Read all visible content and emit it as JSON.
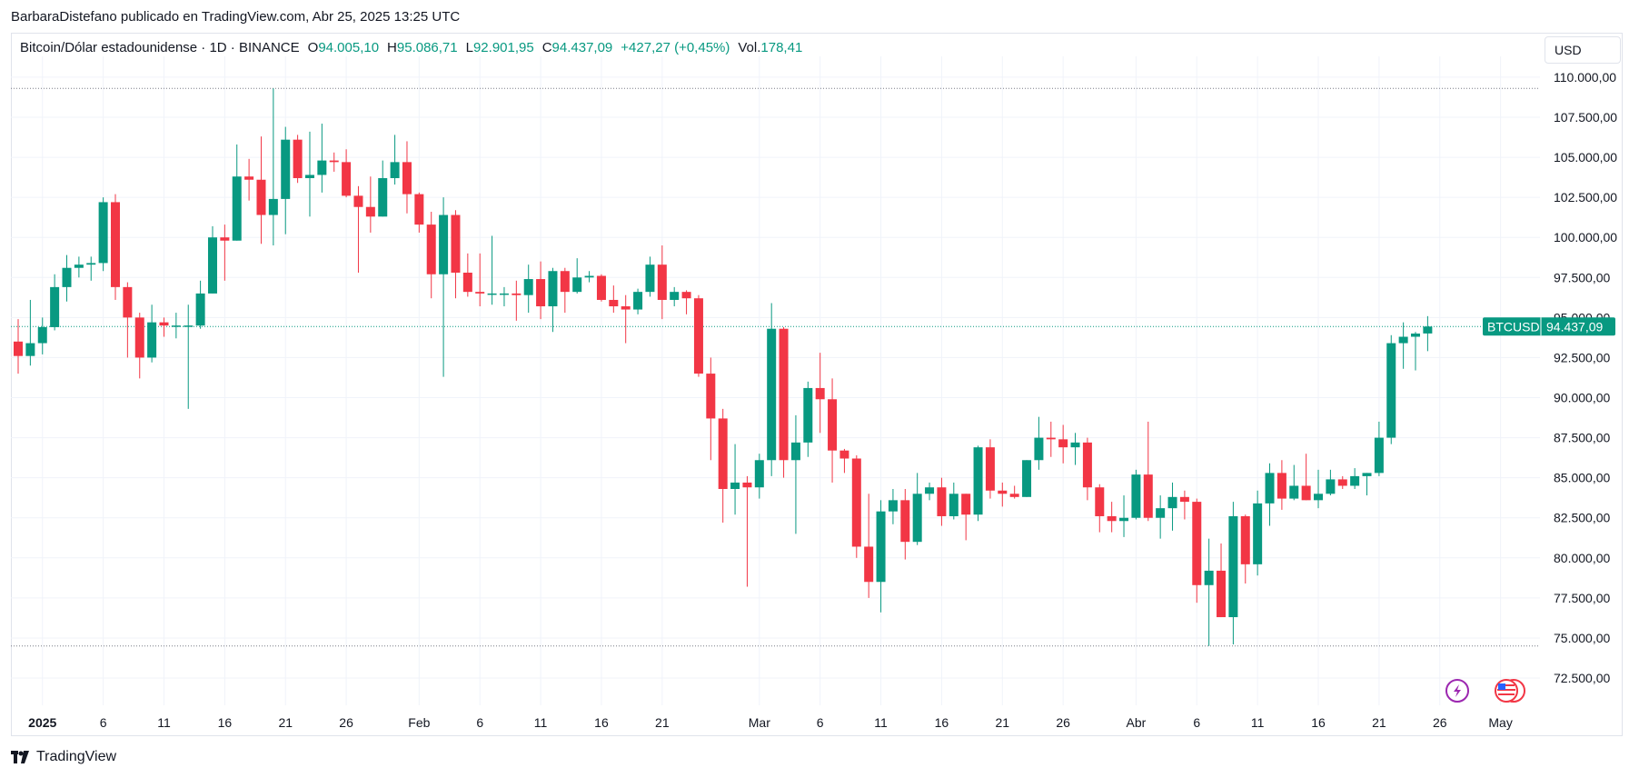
{
  "header": {
    "published_by": "BarbaraDistefano publicado en TradingView.com, Abr 25, 2025 13:25 UTC"
  },
  "legend": {
    "symbol": "Bitcoin/Dólar estadounidense · 1D · BINANCE",
    "open_label": "O",
    "open": "94.005,10",
    "high_label": "H",
    "high": "95.086,71",
    "low_label": "L",
    "low": "92.901,95",
    "close_label": "C",
    "close": "94.437,09",
    "change": "+427,27 (+0,45%)",
    "volume_label": "Vol.",
    "volume": "178,41"
  },
  "currency_button": "USD",
  "price_tag": {
    "symbol": "BTCUSD",
    "price": "94.437,09"
  },
  "branding": "TradingView",
  "icons": [
    "lightning-icon",
    "us-flag-icon"
  ],
  "colors": {
    "up": "#089981",
    "down": "#f23645",
    "grid": "#f0f3fa",
    "axis_text": "#131722"
  },
  "chart_data": {
    "type": "candlestick",
    "y_ticks": [
      72500,
      75000,
      77500,
      80000,
      82500,
      85000,
      87500,
      90000,
      92500,
      95000,
      97500,
      100000,
      102500,
      105000,
      107500,
      110000
    ],
    "y_tick_labels": [
      "72.500,00",
      "75.000,00",
      "77.500,00",
      "80.000,00",
      "82.500,00",
      "85.000,00",
      "87.500,00",
      "90.000,00",
      "92.500,00",
      "95.000,00",
      "97.500,00",
      "100.000,00",
      "102.500,00",
      "105.000,00",
      "107.500,00",
      "110.000,00"
    ],
    "ylim": [
      70800,
      111300
    ],
    "x_range_dates": [
      "2024-12-30",
      "2025-05-02"
    ],
    "x_labels": [
      {
        "date": "2025-01-01",
        "label": "2025",
        "bold": true
      },
      {
        "date": "2025-01-06",
        "label": "6"
      },
      {
        "date": "2025-01-11",
        "label": "11"
      },
      {
        "date": "2025-01-16",
        "label": "16"
      },
      {
        "date": "2025-01-21",
        "label": "21"
      },
      {
        "date": "2025-01-26",
        "label": "26"
      },
      {
        "date": "2025-02-01",
        "label": "Feb"
      },
      {
        "date": "2025-02-06",
        "label": "6"
      },
      {
        "date": "2025-02-11",
        "label": "11"
      },
      {
        "date": "2025-02-16",
        "label": "16"
      },
      {
        "date": "2025-02-21",
        "label": "21"
      },
      {
        "date": "2025-03-01",
        "label": "Mar"
      },
      {
        "date": "2025-03-06",
        "label": "6"
      },
      {
        "date": "2025-03-11",
        "label": "11"
      },
      {
        "date": "2025-03-16",
        "label": "16"
      },
      {
        "date": "2025-03-21",
        "label": "21"
      },
      {
        "date": "2025-03-26",
        "label": "26"
      },
      {
        "date": "2025-04-01",
        "label": "Abr"
      },
      {
        "date": "2025-04-06",
        "label": "6"
      },
      {
        "date": "2025-04-11",
        "label": "11"
      },
      {
        "date": "2025-04-16",
        "label": "16"
      },
      {
        "date": "2025-04-21",
        "label": "21"
      },
      {
        "date": "2025-04-26",
        "label": "26"
      },
      {
        "date": "2025-05-01",
        "label": "May"
      }
    ],
    "high_line": 109300,
    "low_line": 74500,
    "last_price": 94437.09,
    "candles": [
      {
        "date": "2024-12-30",
        "o": 93500,
        "h": 94900,
        "l": 91500,
        "c": 92600
      },
      {
        "date": "2024-12-31",
        "o": 92600,
        "h": 96100,
        "l": 92000,
        "c": 93400
      },
      {
        "date": "2025-01-01",
        "o": 93400,
        "h": 95000,
        "l": 92700,
        "c": 94400
      },
      {
        "date": "2025-01-02",
        "o": 94400,
        "h": 97700,
        "l": 94200,
        "c": 96900
      },
      {
        "date": "2025-01-03",
        "o": 96900,
        "h": 98900,
        "l": 96000,
        "c": 98100
      },
      {
        "date": "2025-01-04",
        "o": 98100,
        "h": 98800,
        "l": 97500,
        "c": 98300
      },
      {
        "date": "2025-01-05",
        "o": 98300,
        "h": 98800,
        "l": 97300,
        "c": 98400
      },
      {
        "date": "2025-01-06",
        "o": 98400,
        "h": 102500,
        "l": 97900,
        "c": 102200
      },
      {
        "date": "2025-01-07",
        "o": 102200,
        "h": 102700,
        "l": 96100,
        "c": 96900
      },
      {
        "date": "2025-01-08",
        "o": 96900,
        "h": 97200,
        "l": 92500,
        "c": 95000
      },
      {
        "date": "2025-01-09",
        "o": 95000,
        "h": 95300,
        "l": 91200,
        "c": 92500
      },
      {
        "date": "2025-01-10",
        "o": 92500,
        "h": 95800,
        "l": 92200,
        "c": 94700
      },
      {
        "date": "2025-01-11",
        "o": 94700,
        "h": 95000,
        "l": 93800,
        "c": 94500
      },
      {
        "date": "2025-01-12",
        "o": 94500,
        "h": 95300,
        "l": 93700,
        "c": 94500
      },
      {
        "date": "2025-01-13",
        "o": 94500,
        "h": 95800,
        "l": 89300,
        "c": 94500
      },
      {
        "date": "2025-01-14",
        "o": 94500,
        "h": 97300,
        "l": 94300,
        "c": 96500
      },
      {
        "date": "2025-01-15",
        "o": 96500,
        "h": 100700,
        "l": 96500,
        "c": 100000
      },
      {
        "date": "2025-01-16",
        "o": 100000,
        "h": 100800,
        "l": 97300,
        "c": 99800
      },
      {
        "date": "2025-01-17",
        "o": 99800,
        "h": 105800,
        "l": 99800,
        "c": 103800
      },
      {
        "date": "2025-01-18",
        "o": 103800,
        "h": 104900,
        "l": 102300,
        "c": 103600
      },
      {
        "date": "2025-01-19",
        "o": 103600,
        "h": 106300,
        "l": 99600,
        "c": 101400
      },
      {
        "date": "2025-01-20",
        "o": 101400,
        "h": 109300,
        "l": 99500,
        "c": 102400
      },
      {
        "date": "2025-01-21",
        "o": 102400,
        "h": 106900,
        "l": 100200,
        "c": 106100
      },
      {
        "date": "2025-01-22",
        "o": 106100,
        "h": 106400,
        "l": 103400,
        "c": 103700
      },
      {
        "date": "2025-01-23",
        "o": 103700,
        "h": 106600,
        "l": 101300,
        "c": 103900
      },
      {
        "date": "2025-01-24",
        "o": 103900,
        "h": 107100,
        "l": 102800,
        "c": 104800
      },
      {
        "date": "2025-01-25",
        "o": 104800,
        "h": 105300,
        "l": 104100,
        "c": 104700
      },
      {
        "date": "2025-01-26",
        "o": 104700,
        "h": 105500,
        "l": 102500,
        "c": 102600
      },
      {
        "date": "2025-01-27",
        "o": 102600,
        "h": 103200,
        "l": 97800,
        "c": 101900
      },
      {
        "date": "2025-01-28",
        "o": 101900,
        "h": 103800,
        "l": 100300,
        "c": 101300
      },
      {
        "date": "2025-01-29",
        "o": 101300,
        "h": 104800,
        "l": 101300,
        "c": 103700
      },
      {
        "date": "2025-01-30",
        "o": 103700,
        "h": 106400,
        "l": 103300,
        "c": 104700
      },
      {
        "date": "2025-01-31",
        "o": 104700,
        "h": 106000,
        "l": 101500,
        "c": 102700
      },
      {
        "date": "2025-02-01",
        "o": 102700,
        "h": 102800,
        "l": 100300,
        "c": 100800
      },
      {
        "date": "2025-02-02",
        "o": 100800,
        "h": 101600,
        "l": 96200,
        "c": 97700
      },
      {
        "date": "2025-02-03",
        "o": 97700,
        "h": 102500,
        "l": 91300,
        "c": 101400
      },
      {
        "date": "2025-02-04",
        "o": 101400,
        "h": 101700,
        "l": 96200,
        "c": 97800
      },
      {
        "date": "2025-02-05",
        "o": 97800,
        "h": 99000,
        "l": 96300,
        "c": 96600
      },
      {
        "date": "2025-02-06",
        "o": 96600,
        "h": 99000,
        "l": 95700,
        "c": 96500
      },
      {
        "date": "2025-02-07",
        "o": 96500,
        "h": 100100,
        "l": 95800,
        "c": 96500
      },
      {
        "date": "2025-02-08",
        "o": 96500,
        "h": 96900,
        "l": 95700,
        "c": 96500
      },
      {
        "date": "2025-02-09",
        "o": 96500,
        "h": 97300,
        "l": 94800,
        "c": 96400
      },
      {
        "date": "2025-02-10",
        "o": 96400,
        "h": 98300,
        "l": 95300,
        "c": 97400
      },
      {
        "date": "2025-02-11",
        "o": 97400,
        "h": 98500,
        "l": 94900,
        "c": 95700
      },
      {
        "date": "2025-02-12",
        "o": 95700,
        "h": 98100,
        "l": 94100,
        "c": 97900
      },
      {
        "date": "2025-02-13",
        "o": 97900,
        "h": 98100,
        "l": 95300,
        "c": 96600
      },
      {
        "date": "2025-02-14",
        "o": 96600,
        "h": 98700,
        "l": 96500,
        "c": 97500
      },
      {
        "date": "2025-02-15",
        "o": 97500,
        "h": 97900,
        "l": 97200,
        "c": 97600
      },
      {
        "date": "2025-02-16",
        "o": 97600,
        "h": 97700,
        "l": 96000,
        "c": 96100
      },
      {
        "date": "2025-02-17",
        "o": 96100,
        "h": 97000,
        "l": 95300,
        "c": 95700
      },
      {
        "date": "2025-02-18",
        "o": 95700,
        "h": 96400,
        "l": 93400,
        "c": 95500
      },
      {
        "date": "2025-02-19",
        "o": 95500,
        "h": 96800,
        "l": 95200,
        "c": 96600
      },
      {
        "date": "2025-02-20",
        "o": 96600,
        "h": 98800,
        "l": 96300,
        "c": 98300
      },
      {
        "date": "2025-02-21",
        "o": 98300,
        "h": 99500,
        "l": 94900,
        "c": 96100
      },
      {
        "date": "2025-02-22",
        "o": 96100,
        "h": 96900,
        "l": 95700,
        "c": 96600
      },
      {
        "date": "2025-02-23",
        "o": 96600,
        "h": 96700,
        "l": 95200,
        "c": 96200
      },
      {
        "date": "2025-02-24",
        "o": 96200,
        "h": 96400,
        "l": 91300,
        "c": 91500
      },
      {
        "date": "2025-02-25",
        "o": 91500,
        "h": 92500,
        "l": 86100,
        "c": 88700
      },
      {
        "date": "2025-02-26",
        "o": 88700,
        "h": 89300,
        "l": 82200,
        "c": 84300
      },
      {
        "date": "2025-02-27",
        "o": 84300,
        "h": 87100,
        "l": 82700,
        "c": 84700
      },
      {
        "date": "2025-02-28",
        "o": 84700,
        "h": 85100,
        "l": 78200,
        "c": 84400
      },
      {
        "date": "2025-03-01",
        "o": 84400,
        "h": 86500,
        "l": 83700,
        "c": 86100
      },
      {
        "date": "2025-03-02",
        "o": 86100,
        "h": 95900,
        "l": 85100,
        "c": 94300
      },
      {
        "date": "2025-03-03",
        "o": 94300,
        "h": 94400,
        "l": 85000,
        "c": 86100
      },
      {
        "date": "2025-03-04",
        "o": 86100,
        "h": 88900,
        "l": 81500,
        "c": 87200
      },
      {
        "date": "2025-03-05",
        "o": 87200,
        "h": 91000,
        "l": 86300,
        "c": 90600
      },
      {
        "date": "2025-03-06",
        "o": 90600,
        "h": 92800,
        "l": 87800,
        "c": 89900
      },
      {
        "date": "2025-03-07",
        "o": 89900,
        "h": 91200,
        "l": 84700,
        "c": 86700
      },
      {
        "date": "2025-03-08",
        "o": 86700,
        "h": 86800,
        "l": 85300,
        "c": 86200
      },
      {
        "date": "2025-03-09",
        "o": 86200,
        "h": 86400,
        "l": 80000,
        "c": 80700
      },
      {
        "date": "2025-03-10",
        "o": 80700,
        "h": 84000,
        "l": 77500,
        "c": 78500
      },
      {
        "date": "2025-03-11",
        "o": 78500,
        "h": 83600,
        "l": 76600,
        "c": 82900
      },
      {
        "date": "2025-03-12",
        "o": 82900,
        "h": 84300,
        "l": 82100,
        "c": 83600
      },
      {
        "date": "2025-03-13",
        "o": 83600,
        "h": 84300,
        "l": 79900,
        "c": 81000
      },
      {
        "date": "2025-03-14",
        "o": 81000,
        "h": 85300,
        "l": 80800,
        "c": 84000
      },
      {
        "date": "2025-03-15",
        "o": 84000,
        "h": 84700,
        "l": 83600,
        "c": 84400
      },
      {
        "date": "2025-03-16",
        "o": 84400,
        "h": 85000,
        "l": 82000,
        "c": 82600
      },
      {
        "date": "2025-03-17",
        "o": 82600,
        "h": 84700,
        "l": 82400,
        "c": 84000
      },
      {
        "date": "2025-03-18",
        "o": 84000,
        "h": 84000,
        "l": 81100,
        "c": 82700
      },
      {
        "date": "2025-03-19",
        "o": 82700,
        "h": 87000,
        "l": 82300,
        "c": 86900
      },
      {
        "date": "2025-03-20",
        "o": 86900,
        "h": 87400,
        "l": 83700,
        "c": 84200
      },
      {
        "date": "2025-03-21",
        "o": 84200,
        "h": 84700,
        "l": 83200,
        "c": 84000
      },
      {
        "date": "2025-03-22",
        "o": 84000,
        "h": 84500,
        "l": 83700,
        "c": 83800
      },
      {
        "date": "2025-03-23",
        "o": 83800,
        "h": 86100,
        "l": 83800,
        "c": 86100
      },
      {
        "date": "2025-03-24",
        "o": 86100,
        "h": 88800,
        "l": 85500,
        "c": 87500
      },
      {
        "date": "2025-03-25",
        "o": 87500,
        "h": 88500,
        "l": 86300,
        "c": 87400
      },
      {
        "date": "2025-03-26",
        "o": 87400,
        "h": 88300,
        "l": 85900,
        "c": 86900
      },
      {
        "date": "2025-03-27",
        "o": 86900,
        "h": 87800,
        "l": 85800,
        "c": 87200
      },
      {
        "date": "2025-03-28",
        "o": 87200,
        "h": 87500,
        "l": 83600,
        "c": 84400
      },
      {
        "date": "2025-03-29",
        "o": 84400,
        "h": 84600,
        "l": 81600,
        "c": 82600
      },
      {
        "date": "2025-03-30",
        "o": 82600,
        "h": 83500,
        "l": 81600,
        "c": 82300
      },
      {
        "date": "2025-03-31",
        "o": 82300,
        "h": 83900,
        "l": 81300,
        "c": 82500
      },
      {
        "date": "2025-04-01",
        "o": 82500,
        "h": 85500,
        "l": 82400,
        "c": 85200
      },
      {
        "date": "2025-04-02",
        "o": 85200,
        "h": 88500,
        "l": 82300,
        "c": 82500
      },
      {
        "date": "2025-04-03",
        "o": 82500,
        "h": 83900,
        "l": 81200,
        "c": 83100
      },
      {
        "date": "2025-04-04",
        "o": 83100,
        "h": 84700,
        "l": 81700,
        "c": 83800
      },
      {
        "date": "2025-04-05",
        "o": 83800,
        "h": 84200,
        "l": 82400,
        "c": 83500
      },
      {
        "date": "2025-04-06",
        "o": 83500,
        "h": 83700,
        "l": 77200,
        "c": 78300
      },
      {
        "date": "2025-04-07",
        "o": 78300,
        "h": 81200,
        "l": 74500,
        "c": 79200
      },
      {
        "date": "2025-04-08",
        "o": 79200,
        "h": 80900,
        "l": 76300,
        "c": 76300
      },
      {
        "date": "2025-04-09",
        "o": 76300,
        "h": 83500,
        "l": 74600,
        "c": 82600
      },
      {
        "date": "2025-04-10",
        "o": 82600,
        "h": 82700,
        "l": 78400,
        "c": 79600
      },
      {
        "date": "2025-04-11",
        "o": 79600,
        "h": 84200,
        "l": 78900,
        "c": 83400
      },
      {
        "date": "2025-04-12",
        "o": 83400,
        "h": 85900,
        "l": 82000,
        "c": 85300
      },
      {
        "date": "2025-04-13",
        "o": 85300,
        "h": 86100,
        "l": 83000,
        "c": 83700
      },
      {
        "date": "2025-04-14",
        "o": 83700,
        "h": 85800,
        "l": 83600,
        "c": 84500
      },
      {
        "date": "2025-04-15",
        "o": 84500,
        "h": 86500,
        "l": 83600,
        "c": 83600
      },
      {
        "date": "2025-04-16",
        "o": 83600,
        "h": 85500,
        "l": 83100,
        "c": 84000
      },
      {
        "date": "2025-04-17",
        "o": 84000,
        "h": 85500,
        "l": 83900,
        "c": 84900
      },
      {
        "date": "2025-04-18",
        "o": 84900,
        "h": 85100,
        "l": 84300,
        "c": 84500
      },
      {
        "date": "2025-04-19",
        "o": 84500,
        "h": 85600,
        "l": 84300,
        "c": 85100
      },
      {
        "date": "2025-04-20",
        "o": 85100,
        "h": 85300,
        "l": 83900,
        "c": 85300
      },
      {
        "date": "2025-04-21",
        "o": 85300,
        "h": 88500,
        "l": 85100,
        "c": 87500
      },
      {
        "date": "2025-04-22",
        "o": 87500,
        "h": 93900,
        "l": 87100,
        "c": 93400
      },
      {
        "date": "2025-04-23",
        "o": 93400,
        "h": 94700,
        "l": 91800,
        "c": 93800
      },
      {
        "date": "2025-04-24",
        "o": 93800,
        "h": 94100,
        "l": 91700,
        "c": 94000
      },
      {
        "date": "2025-04-25",
        "o": 94005.1,
        "h": 95086.71,
        "l": 92901.95,
        "c": 94437.09
      }
    ]
  }
}
